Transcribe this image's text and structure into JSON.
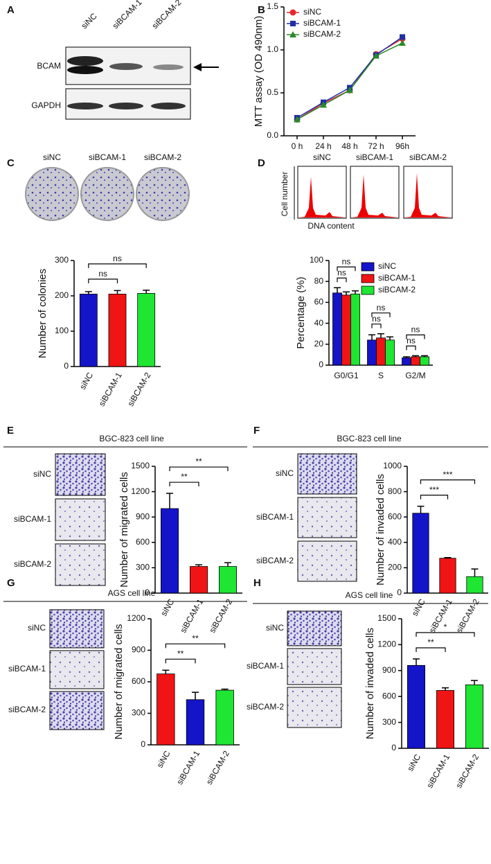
{
  "figure": {
    "panel_labels": [
      "A",
      "B",
      "C",
      "D",
      "E",
      "F",
      "G",
      "H"
    ],
    "blot": {
      "lanes": [
        "siNC",
        "siBCAM-1",
        "siBCAM-2"
      ],
      "rows": [
        "BCAM",
        "GAPDH"
      ]
    },
    "colony_labels": [
      "siNC",
      "siBCAM-1",
      "siBCAM-2"
    ],
    "flow": {
      "lanes": [
        "siNC",
        "siBCAM-1",
        "siBCAM-2"
      ],
      "y_label": "Cell number",
      "x_label": "DNA content"
    },
    "image_labels": [
      [
        "siNC",
        "siBCAM-1",
        "siBCAM-2"
      ],
      [
        "siNC",
        "siBCAM-1",
        "siBCAM-2"
      ],
      [
        "siNC",
        "siBCAM-1",
        "siBCAM-2"
      ],
      [
        "siNC",
        "siBCAM-1",
        "siBCAM-2"
      ]
    ]
  },
  "chart_data": [
    {
      "type": "line",
      "y_label": "MTT assay (OD 490nm)",
      "categories": [
        "0 h",
        "24 h",
        "48 h",
        "72 h",
        "96h"
      ],
      "series": [
        {
          "name": "siNC",
          "color": "#e8262b",
          "marker": "circle",
          "values": [
            0.19,
            0.38,
            0.53,
            0.95,
            1.13
          ]
        },
        {
          "name": "siBCAM-1",
          "color": "#1f2fa8",
          "marker": "square",
          "values": [
            0.21,
            0.39,
            0.56,
            0.94,
            1.15
          ]
        },
        {
          "name": "siBCAM-2",
          "color": "#2a8a2a",
          "marker": "triangle",
          "values": [
            0.19,
            0.36,
            0.53,
            0.93,
            1.08
          ]
        }
      ],
      "ylim": [
        0,
        1.5
      ],
      "yticks": [
        {
          "value": 0,
          "label": "0.0"
        },
        0.5,
        {
          "value": 1,
          "label": "1.0"
        },
        1.5
      ],
      "legend": "top-left"
    },
    {
      "type": "bar",
      "y_label": "Number of colonies",
      "categories": [
        "siNC",
        "siBCAM-1",
        "siBCAM-2"
      ],
      "values": [
        205,
        205,
        207
      ],
      "errors": [
        7,
        10,
        9
      ],
      "colors": [
        "#1414c8",
        "#f01414",
        "#1ee632"
      ],
      "ylim": [
        0,
        300
      ],
      "yticks": [
        0,
        100,
        200,
        300
      ],
      "annotations": [
        "ns",
        "ns"
      ]
    },
    {
      "type": "bar",
      "y_label": "Percentage (%)",
      "categories": [
        "G0/G1",
        "S",
        "G2/M"
      ],
      "series": [
        {
          "name": "siNC",
          "color": "#1414c8",
          "values": [
            69,
            24,
            7
          ],
          "errors": [
            5,
            5,
            1
          ]
        },
        {
          "name": "siBCAM-1",
          "color": "#f01414",
          "values": [
            67,
            26,
            8
          ],
          "errors": [
            3,
            4,
            1
          ]
        },
        {
          "name": "siBCAM-2",
          "color": "#1ee632",
          "values": [
            68,
            24,
            8
          ],
          "errors": [
            3,
            3,
            1
          ]
        }
      ],
      "ylim": [
        0,
        100
      ],
      "yticks": [
        0,
        20,
        40,
        60,
        80,
        100
      ],
      "legend": "right",
      "annotations": [
        "ns",
        "ns",
        "ns",
        "ns",
        "ns",
        "ns"
      ]
    },
    {
      "type": "bar",
      "title": "BGC-823 cell line",
      "y_label": "Number of  migrated cells",
      "categories": [
        "siNC",
        "siBCAM-1",
        "siBCAM-2"
      ],
      "values": [
        1000,
        315,
        315
      ],
      "errors": [
        180,
        20,
        45
      ],
      "colors": [
        "#1414c8",
        "#f01414",
        "#1ee632"
      ],
      "ylim": [
        0,
        1500
      ],
      "yticks": [
        0,
        300,
        600,
        900,
        1200,
        1500
      ],
      "annotations": [
        "**",
        "**"
      ]
    },
    {
      "type": "bar",
      "title": "BGC-823 cell line",
      "y_label": "Number of invaded cells",
      "categories": [
        "siNC",
        "siBCAM-1",
        "siBCAM-2"
      ],
      "values": [
        630,
        275,
        130
      ],
      "errors": [
        55,
        5,
        60
      ],
      "colors": [
        "#1414c8",
        "#f01414",
        "#1ee632"
      ],
      "ylim": [
        0,
        1000
      ],
      "yticks": [
        0,
        200,
        400,
        600,
        800,
        1000
      ],
      "annotations": [
        "***",
        "***"
      ]
    },
    {
      "type": "bar",
      "title": "AGS cell line",
      "y_label": "Number of  migrated cells",
      "categories": [
        "siNC",
        "siBCAM-1",
        "siBCAM-2"
      ],
      "values": [
        675,
        430,
        520
      ],
      "errors": [
        35,
        70,
        10
      ],
      "colors": [
        "#f01414",
        "#1414c8",
        "#1ee632"
      ],
      "ylim": [
        0,
        1200
      ],
      "yticks": [
        0,
        300,
        600,
        900,
        1200
      ],
      "annotations": [
        "**",
        "**"
      ]
    },
    {
      "type": "bar",
      "title": "AGS cell line",
      "y_label": "Number of invaded cells",
      "categories": [
        "siNC",
        "siBCAM-1",
        "siBCAM-2"
      ],
      "values": [
        960,
        670,
        735
      ],
      "errors": [
        75,
        30,
        50
      ],
      "colors": [
        "#1414c8",
        "#f01414",
        "#1ee632"
      ],
      "ylim": [
        0,
        1500
      ],
      "yticks": [
        0,
        300,
        600,
        900,
        1200,
        1500
      ],
      "annotations": [
        "**",
        "*"
      ]
    }
  ]
}
